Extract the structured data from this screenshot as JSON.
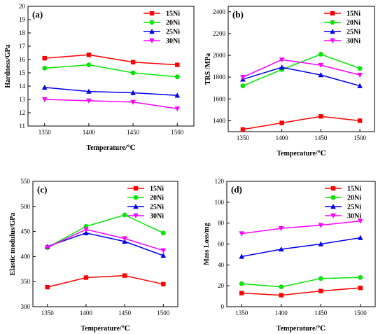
{
  "figure": {
    "series_names": [
      "15Ni",
      "20Ni",
      "25Ni",
      "30Ni"
    ],
    "colors": [
      "#ff0000",
      "#00e600",
      "#0000ee",
      "#ff00ff"
    ],
    "markers": [
      "square",
      "circle",
      "triangle-up",
      "triangle-down"
    ]
  },
  "chart_data": [
    {
      "type": "line",
      "panel_label": "(a)",
      "xlabel": "Temperature/℃",
      "ylabel": "Hardness/GPa",
      "x": [
        1350,
        1400,
        1450,
        1500
      ],
      "xticks": [
        1350,
        1400,
        1450,
        1500
      ],
      "ylim": [
        11,
        20
      ],
      "yticks": [
        11,
        12,
        13,
        14,
        15,
        16,
        17,
        18,
        19,
        20
      ],
      "legend_position": "top-right",
      "grid": false,
      "series": [
        {
          "name": "15Ni",
          "values": [
            16.1,
            16.35,
            15.8,
            15.6
          ]
        },
        {
          "name": "20Ni",
          "values": [
            15.35,
            15.6,
            15.0,
            14.7
          ]
        },
        {
          "name": "25Ni",
          "values": [
            13.9,
            13.6,
            13.5,
            13.3
          ]
        },
        {
          "name": "30Ni",
          "values": [
            13.0,
            12.9,
            12.8,
            12.3
          ]
        }
      ]
    },
    {
      "type": "line",
      "panel_label": "(b)",
      "xlabel": "Temperature/℃",
      "ylabel": "TRS /MPa",
      "x": [
        1350,
        1400,
        1450,
        1500
      ],
      "xticks": [
        1350,
        1400,
        1450,
        1500
      ],
      "ylim": [
        1300,
        2450
      ],
      "yticks": [
        1400,
        1600,
        1800,
        2000,
        2200,
        2400
      ],
      "legend_position": "top-right",
      "grid": false,
      "series": [
        {
          "name": "15Ni",
          "values": [
            1320,
            1380,
            1440,
            1400
          ]
        },
        {
          "name": "20Ni",
          "values": [
            1720,
            1870,
            2010,
            1880
          ]
        },
        {
          "name": "25Ni",
          "values": [
            1780,
            1890,
            1820,
            1720
          ]
        },
        {
          "name": "30Ni",
          "values": [
            1800,
            1960,
            1910,
            1820
          ]
        }
      ]
    },
    {
      "type": "line",
      "panel_label": "(c)",
      "xlabel": "Temperature/℃",
      "ylabel": "Elastic modulus/GPa",
      "x": [
        1350,
        1400,
        1450,
        1500
      ],
      "xticks": [
        1350,
        1400,
        1450,
        1500
      ],
      "ylim": [
        300,
        550
      ],
      "yticks": [
        300,
        350,
        400,
        450,
        500,
        550
      ],
      "legend_position": "top-right",
      "grid": false,
      "series": [
        {
          "name": "15Ni",
          "values": [
            339,
            358,
            362,
            345
          ]
        },
        {
          "name": "20Ni",
          "values": [
            418,
            460,
            483,
            447
          ]
        },
        {
          "name": "25Ni",
          "values": [
            420,
            447,
            430,
            402
          ]
        },
        {
          "name": "30Ni",
          "values": [
            418,
            454,
            436,
            412
          ]
        }
      ]
    },
    {
      "type": "line",
      "panel_label": "(d)",
      "xlabel": "Temperature/℃",
      "ylabel": "Mass Loss/mg",
      "x": [
        1350,
        1400,
        1450,
        1500
      ],
      "xticks": [
        1350,
        1400,
        1450,
        1500
      ],
      "ylim": [
        0,
        120
      ],
      "yticks": [
        0,
        20,
        40,
        60,
        80,
        100,
        120
      ],
      "legend_position": "top-right",
      "grid": false,
      "series": [
        {
          "name": "15Ni",
          "values": [
            13,
            11,
            15,
            18
          ]
        },
        {
          "name": "20Ni",
          "values": [
            22,
            19,
            27,
            28
          ]
        },
        {
          "name": "25Ni",
          "values": [
            48,
            55,
            60,
            66
          ]
        },
        {
          "name": "30Ni",
          "values": [
            70,
            75,
            78,
            82
          ]
        }
      ]
    }
  ]
}
